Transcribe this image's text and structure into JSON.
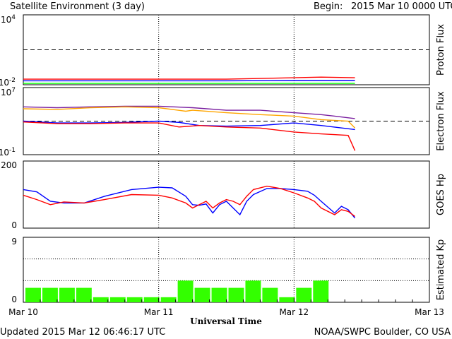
{
  "header": {
    "title": "Satellite Environment (3 day)",
    "begin_label": "Begin:",
    "begin_value": "2015 Mar 10 0000 UTC"
  },
  "footer": {
    "updated": "Updated 2015 Mar 12 06:46:17 UTC",
    "credit": "NOAA/SWPC Boulder, CO USA"
  },
  "colors": {
    "red": "#ff0000",
    "blue": "#0000ff",
    "green": "#00ff00",
    "purple": "#7a1fa0",
    "orange": "#ffa500",
    "kp_bar": "#33ff00"
  },
  "chart_data": [
    {
      "type": "line",
      "ylabel": "Proton Flux",
      "y_scale": "log",
      "ylim": [
        0.01,
        10000
      ],
      "yticks": [
        {
          "base": "10",
          "exp": "4"
        },
        {
          "base": "10",
          "exp": "-2"
        }
      ],
      "threshold": 10,
      "x_unit": "days since 2015 Mar 10 0000 UTC",
      "series": [
        {
          "color": "red",
          "x": [
            0,
            0.5,
            1,
            1.5,
            2,
            2.2,
            2.45
          ],
          "y": [
            0.03,
            0.03,
            0.03,
            0.03,
            0.04,
            0.045,
            0.04
          ]
        },
        {
          "color": "blue",
          "x": [
            0,
            0.5,
            1,
            1.5,
            2,
            2.45
          ],
          "y": [
            0.022,
            0.022,
            0.022,
            0.022,
            0.023,
            0.023
          ]
        },
        {
          "color": "green",
          "x": [
            0,
            0.5,
            1,
            1.5,
            2,
            2.45
          ],
          "y": [
            0.013,
            0.013,
            0.013,
            0.013,
            0.013,
            0.013
          ]
        }
      ]
    },
    {
      "type": "line",
      "ylabel": "Electron Flux",
      "y_scale": "log",
      "ylim": [
        0.1,
        10000000
      ],
      "yticks": [
        {
          "base": "10",
          "exp": "7"
        },
        {
          "base": "10",
          "exp": "-1"
        }
      ],
      "threshold": 1000,
      "series": [
        {
          "color": "purple",
          "x": [
            0,
            0.25,
            0.5,
            0.75,
            1,
            1.25,
            1.5,
            1.75,
            2,
            2.2,
            2.3,
            2.45
          ],
          "y": [
            50000,
            40000,
            50000,
            60000,
            60000,
            40000,
            20000,
            20000,
            10000,
            6000,
            4000,
            2000
          ]
        },
        {
          "color": "orange",
          "x": [
            0,
            0.25,
            0.5,
            0.75,
            1,
            1.2,
            1.25,
            1.5,
            1.75,
            2,
            2.2,
            2.4,
            2.45
          ],
          "y": [
            30000,
            25000,
            40000,
            50000,
            40000,
            15000,
            20000,
            10000,
            6000,
            4000,
            1500,
            1000,
            150
          ]
        },
        {
          "color": "blue",
          "x": [
            0,
            0.25,
            0.5,
            0.75,
            1,
            1.15,
            1.3,
            1.5,
            1.75,
            2,
            2.2,
            2.45
          ],
          "y": [
            1000,
            600,
            600,
            700,
            1000,
            700,
            300,
            250,
            300,
            600,
            300,
            100
          ]
        },
        {
          "color": "red",
          "x": [
            0,
            0.25,
            0.5,
            0.75,
            1,
            1.15,
            1.3,
            1.5,
            1.75,
            2,
            2.2,
            2.4,
            2.45
          ],
          "y": [
            800,
            500,
            500,
            600,
            600,
            200,
            300,
            200,
            150,
            50,
            30,
            20,
            0.3
          ]
        }
      ]
    },
    {
      "type": "line",
      "ylabel": "GOES Hp",
      "ylim": [
        0,
        200
      ],
      "yticks": [
        "200",
        "0"
      ],
      "series": [
        {
          "color": "blue",
          "x": [
            0,
            0.1,
            0.2,
            0.3,
            0.45,
            0.6,
            0.8,
            1,
            1.1,
            1.2,
            1.25,
            1.3,
            1.35,
            1.4,
            1.45,
            1.5,
            1.55,
            1.6,
            1.65,
            1.7,
            1.8,
            1.9,
            2,
            2.1,
            2.15,
            2.2,
            2.3,
            2.35,
            2.4,
            2.45
          ],
          "y": [
            115,
            108,
            80,
            75,
            75,
            95,
            115,
            122,
            120,
            95,
            70,
            68,
            72,
            45,
            70,
            80,
            60,
            40,
            80,
            100,
            118,
            118,
            115,
            110,
            98,
            80,
            45,
            65,
            55,
            30
          ]
        },
        {
          "color": "red",
          "x": [
            0,
            0.1,
            0.2,
            0.3,
            0.45,
            0.6,
            0.8,
            1,
            1.1,
            1.2,
            1.25,
            1.3,
            1.35,
            1.4,
            1.45,
            1.5,
            1.55,
            1.6,
            1.65,
            1.7,
            1.8,
            1.9,
            2,
            2.1,
            2.15,
            2.2,
            2.3,
            2.35,
            2.4,
            2.45
          ],
          "y": [
            98,
            85,
            70,
            78,
            75,
            85,
            100,
            98,
            90,
            75,
            60,
            70,
            80,
            60,
            75,
            85,
            80,
            70,
            95,
            115,
            125,
            118,
            105,
            90,
            80,
            60,
            40,
            55,
            50,
            35
          ]
        }
      ]
    },
    {
      "type": "bar",
      "ylabel": "Estimated Kp",
      "ylim": [
        0,
        9
      ],
      "yticks": [
        "9",
        "0"
      ],
      "xticks": [
        "Mar 10",
        "Mar 11",
        "Mar 12",
        "Mar 13"
      ],
      "xlabel": "Universal Time",
      "x_start": [
        0,
        0.125,
        0.25,
        0.375,
        0.5,
        0.625,
        0.75,
        0.875,
        1,
        1.125,
        1.25,
        1.375,
        1.5,
        1.625,
        1.75,
        1.875,
        2,
        2.125,
        2.25,
        2.375
      ],
      "values": [
        2,
        2,
        2,
        2,
        0.7,
        0.7,
        0.7,
        0.7,
        0.7,
        3,
        2,
        2,
        2,
        3,
        2,
        0.7,
        2,
        3,
        0,
        0
      ]
    }
  ]
}
